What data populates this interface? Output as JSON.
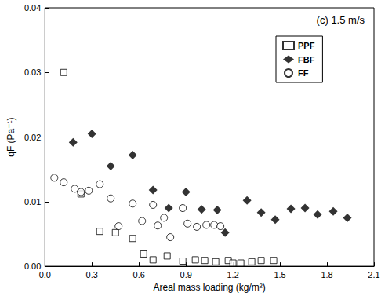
{
  "chart_data": {
    "type": "scatter",
    "annotation": "(c) 1.5 m/s",
    "x_label": "Areal mass loading (kg/m²)",
    "y_label": "qF (Pa⁻¹)",
    "xlim": [
      0,
      2.1
    ],
    "xticks": [
      {
        "value": 0,
        "label": "0.0"
      },
      0.3,
      0.6,
      0.9,
      1.2,
      1.5,
      1.8,
      2.1
    ],
    "ylim": [
      0,
      0.04
    ],
    "yticks": [
      {
        "value": 0,
        "label": "0.00"
      },
      0.01,
      0.02,
      0.03,
      0.04
    ],
    "grid": false,
    "legend": "upper right",
    "series": [
      {
        "name": "PPF",
        "color": "#000000",
        "marker": "open-square",
        "x": [
          0.12,
          0.23,
          0.35,
          0.45,
          0.56,
          0.63,
          0.69,
          0.78,
          0.88,
          0.96,
          1.02,
          1.09,
          1.17,
          1.2,
          1.25,
          1.32,
          1.38,
          1.46
        ],
        "values": [
          0.03,
          0.0112,
          0.0054,
          0.0052,
          0.0043,
          0.0019,
          0.001,
          0.0016,
          0.0008,
          0.001,
          0.0009,
          0.0007,
          0.0009,
          0.0005,
          0.0005,
          0.0007,
          0.0009,
          0.0009
        ]
      },
      {
        "name": "FBF",
        "color": "#000000",
        "marker": "diamond",
        "x": [
          0.18,
          0.3,
          0.42,
          0.56,
          0.69,
          0.79,
          0.9,
          1.0,
          1.1,
          1.15,
          1.29,
          1.38,
          1.47,
          1.57,
          1.66,
          1.74,
          1.84,
          1.93
        ],
        "values": [
          0.0192,
          0.0205,
          0.0155,
          0.0172,
          0.0118,
          0.009,
          0.0115,
          0.0088,
          0.0087,
          0.0052,
          0.0102,
          0.0083,
          0.0072,
          0.0089,
          0.009,
          0.008,
          0.0085,
          0.0075
        ]
      },
      {
        "name": "FF",
        "color": "#000000",
        "marker": "open-circle",
        "x": [
          0.06,
          0.12,
          0.19,
          0.23,
          0.28,
          0.35,
          0.42,
          0.47,
          0.56,
          0.62,
          0.69,
          0.72,
          0.76,
          0.8,
          0.88,
          0.91,
          0.97,
          1.03,
          1.08,
          1.12
        ],
        "values": [
          0.0137,
          0.013,
          0.012,
          0.0115,
          0.0117,
          0.0127,
          0.0105,
          0.0062,
          0.0097,
          0.007,
          0.0095,
          0.0063,
          0.0075,
          0.0045,
          0.009,
          0.0066,
          0.0061,
          0.0064,
          0.0064,
          0.0062
        ]
      }
    ]
  }
}
